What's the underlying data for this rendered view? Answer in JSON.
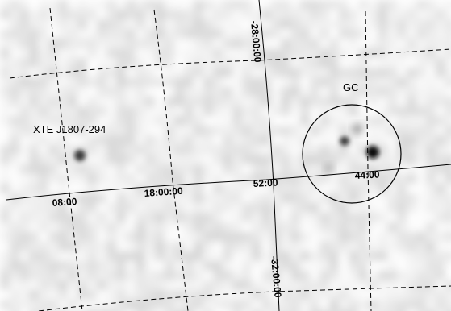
{
  "image": {
    "description_free": true,
    "colormap": "grayscale",
    "background_color": "#ffffff",
    "source_color": "#1a1a1a"
  },
  "grid": {
    "line_color": "#000000",
    "dashed_meridians_and_parallels": true,
    "solid_reference_lines": true
  },
  "labels": {
    "source_xte": "XTE J1807-294",
    "source_gc": "GC",
    "ra_08": "08:00",
    "ra_18": "18:00:00",
    "ra_52": "52:00",
    "ra_44": "44:00",
    "dec_28": "-28:00:00",
    "dec_32": "-32:00:00"
  }
}
